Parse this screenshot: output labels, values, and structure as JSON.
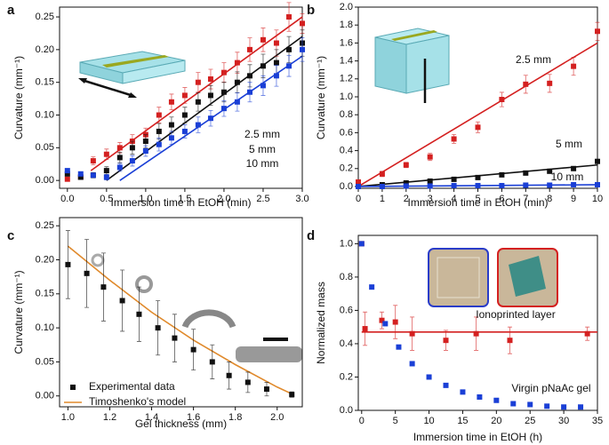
{
  "chart_data": [
    {
      "type": "scatter",
      "panel": "a",
      "xlabel": "Immersion time in EtOH (min)",
      "ylabel": "Curvature (mm⁻¹)",
      "xlim": [
        -0.1,
        3.0
      ],
      "ylim": [
        -0.012,
        0.265
      ],
      "xticks": [
        {
          "value": 0,
          "label": "0.0"
        },
        0.5,
        {
          "value": 1,
          "label": "1.0"
        },
        1.5,
        {
          "value": 2,
          "label": "2.0"
        },
        2.5,
        {
          "value": 3,
          "label": "3.0"
        }
      ],
      "yticks": [
        {
          "value": 0,
          "label": "0.00"
        },
        0.05,
        {
          "value": 0.1,
          "label": "0.10"
        },
        0.15,
        {
          "value": 0.2,
          "label": "0.20"
        },
        0.25
      ],
      "series": [
        {
          "name": "2.5 mm",
          "color": "#d42020",
          "x": [
            0,
            0.17,
            0.33,
            0.5,
            0.67,
            0.83,
            1.0,
            1.17,
            1.33,
            1.5,
            1.67,
            1.83,
            2.0,
            2.17,
            2.33,
            2.5,
            2.67,
            2.83,
            3.0
          ],
          "values": [
            0.002,
            0.005,
            0.03,
            0.04,
            0.05,
            0.06,
            0.07,
            0.1,
            0.12,
            0.13,
            0.15,
            0.155,
            0.165,
            0.18,
            0.2,
            0.215,
            0.21,
            0.25,
            0.24
          ],
          "errors": [
            0.002,
            0.003,
            0.006,
            0.008,
            0.008,
            0.01,
            0.01,
            0.012,
            0.012,
            0.012,
            0.015,
            0.015,
            0.015,
            0.016,
            0.018,
            0.018,
            0.02,
            0.022,
            0.015
          ]
        },
        {
          "name": "5 mm",
          "color": "#111111",
          "x": [
            0,
            0.17,
            0.33,
            0.5,
            0.67,
            0.83,
            1.0,
            1.17,
            1.33,
            1.5,
            1.67,
            1.83,
            2.0,
            2.17,
            2.33,
            2.5,
            2.67,
            2.83,
            3.0
          ],
          "values": [
            0.01,
            0.005,
            0.008,
            0.015,
            0.035,
            0.05,
            0.06,
            0.075,
            0.085,
            0.1,
            0.12,
            0.13,
            0.135,
            0.15,
            0.16,
            0.175,
            0.18,
            0.2,
            0.21
          ],
          "errors": [
            0.003,
            0.003,
            0.004,
            0.006,
            0.008,
            0.01,
            0.01,
            0.012,
            0.012,
            0.012,
            0.014,
            0.015,
            0.015,
            0.016,
            0.017,
            0.018,
            0.02,
            0.02,
            0.02
          ]
        },
        {
          "name": "10 mm",
          "color": "#1a3fd6",
          "x": [
            0,
            0.17,
            0.33,
            0.5,
            0.67,
            0.83,
            1.0,
            1.17,
            1.33,
            1.5,
            1.67,
            1.83,
            2.0,
            2.17,
            2.33,
            2.5,
            2.67,
            2.83,
            3.0
          ],
          "values": [
            0.015,
            0.01,
            0.008,
            0.005,
            0.02,
            0.03,
            0.045,
            0.055,
            0.065,
            0.075,
            0.085,
            0.095,
            0.11,
            0.12,
            0.135,
            0.145,
            0.16,
            0.175,
            0.2
          ],
          "errors": [
            0.003,
            0.003,
            0.003,
            0.004,
            0.006,
            0.008,
            0.008,
            0.01,
            0.01,
            0.01,
            0.012,
            0.012,
            0.012,
            0.014,
            0.015,
            0.015,
            0.016,
            0.016,
            0.018
          ]
        }
      ],
      "fits": [
        {
          "color": "#d42020",
          "x": [
            0.3,
            3.0
          ],
          "values": [
            0.015,
            0.25
          ]
        },
        {
          "color": "#111111",
          "x": [
            0.5,
            3.0
          ],
          "values": [
            0.0,
            0.22
          ]
        },
        {
          "color": "#1a3fd6",
          "x": [
            0.67,
            3.0
          ],
          "values": [
            0.0,
            0.19
          ]
        }
      ]
    },
    {
      "type": "scatter",
      "panel": "b",
      "xlabel": "Immersion time in EtOH (min)",
      "ylabel": "Curvature (mm⁻¹)",
      "xlim": [
        0,
        10
      ],
      "ylim": [
        -0.02,
        2.0
      ],
      "xticks": [
        0,
        1,
        2,
        3,
        4,
        5,
        6,
        7,
        8,
        9,
        10
      ],
      "yticks": [
        {
          "value": 0,
          "label": "0.0"
        },
        0.2,
        0.4,
        0.6,
        0.8,
        {
          "value": 1,
          "label": "1.0"
        },
        1.2,
        1.4,
        1.6,
        1.8,
        {
          "value": 2,
          "label": "2.0"
        }
      ],
      "series": [
        {
          "name": "2.5 mm",
          "color": "#d42020",
          "x": [
            0,
            1,
            2,
            3,
            4,
            5,
            6,
            7,
            8,
            9,
            10
          ],
          "values": [
            0.05,
            0.14,
            0.24,
            0.33,
            0.53,
            0.66,
            0.97,
            1.14,
            1.15,
            1.34,
            1.73
          ],
          "errors": [
            0.02,
            0.03,
            0.03,
            0.04,
            0.05,
            0.06,
            0.08,
            0.1,
            0.1,
            0.1,
            0.1
          ]
        },
        {
          "name": "5 mm",
          "color": "#111111",
          "x": [
            0,
            1,
            2,
            3,
            4,
            5,
            6,
            7,
            8,
            9,
            10
          ],
          "values": [
            0.0,
            0.02,
            0.04,
            0.06,
            0.08,
            0.1,
            0.13,
            0.15,
            0.17,
            0.2,
            0.28
          ],
          "errors": [
            0.01,
            0.01,
            0.01,
            0.01,
            0.01,
            0.01,
            0.015,
            0.015,
            0.015,
            0.02,
            0.02
          ]
        },
        {
          "name": "10 mm",
          "color": "#1a3fd6",
          "x": [
            0,
            1,
            2,
            3,
            4,
            5,
            6,
            7,
            8,
            9,
            10
          ],
          "values": [
            0.0,
            0.0,
            0.005,
            0.005,
            0.01,
            0.01,
            0.01,
            0.015,
            0.015,
            0.02,
            0.02
          ],
          "errors": [
            0.005,
            0.005,
            0.005,
            0.005,
            0.005,
            0.005,
            0.005,
            0.005,
            0.005,
            0.005,
            0.005
          ]
        }
      ],
      "fits": [
        {
          "color": "#d42020",
          "x": [
            0,
            10
          ],
          "values": [
            0.0,
            1.6
          ]
        },
        {
          "color": "#111111",
          "x": [
            0,
            10
          ],
          "values": [
            0.0,
            0.24
          ]
        },
        {
          "color": "#1a3fd6",
          "x": [
            0,
            10
          ],
          "values": [
            0.0,
            0.02
          ]
        }
      ]
    },
    {
      "type": "scatter",
      "panel": "c",
      "xlabel": "Gel thickness (mm)",
      "ylabel": "Curvature (mm⁻¹)",
      "xlim": [
        0.96,
        2.12
      ],
      "ylim": [
        -0.016,
        0.262
      ],
      "xticks": [
        {
          "value": 1,
          "label": "1.0"
        },
        1.2,
        1.4,
        1.6,
        1.8,
        {
          "value": 2,
          "label": "2.0"
        }
      ],
      "yticks": [
        {
          "value": 0,
          "label": "0.00"
        },
        0.05,
        {
          "value": 0.1,
          "label": "0.10"
        },
        0.15,
        {
          "value": 0.2,
          "label": "0.20"
        },
        0.25
      ],
      "series": [
        {
          "name": "Experimental data",
          "color": "#111111",
          "x": [
            1.0,
            1.09,
            1.17,
            1.26,
            1.34,
            1.43,
            1.51,
            1.6,
            1.69,
            1.77,
            1.86,
            1.95,
            2.07
          ],
          "values": [
            0.193,
            0.18,
            0.16,
            0.14,
            0.12,
            0.1,
            0.085,
            0.068,
            0.05,
            0.03,
            0.02,
            0.01,
            0.002
          ],
          "errors": [
            0.05,
            0.05,
            0.05,
            0.045,
            0.04,
            0.04,
            0.035,
            0.03,
            0.025,
            0.02,
            0.015,
            0.01,
            0.004
          ]
        }
      ],
      "fits": [
        {
          "name": "Timoshenko's model",
          "color": "#e08a2c",
          "x": [
            1.0,
            1.2,
            1.4,
            1.6,
            1.8,
            2.0,
            2.07
          ],
          "values": [
            0.22,
            0.17,
            0.123,
            0.082,
            0.046,
            0.013,
            0.003
          ]
        }
      ]
    },
    {
      "type": "scatter",
      "panel": "d",
      "xlabel": "Immersion time in EtOH (h)",
      "ylabel": "Normalized mass",
      "xlim": [
        -0.5,
        35
      ],
      "ylim": [
        0,
        1.05
      ],
      "xticks": [
        0,
        5,
        10,
        15,
        20,
        25,
        30,
        35
      ],
      "yticks": [
        {
          "value": 0,
          "label": "0.0"
        },
        0.2,
        0.4,
        0.6,
        0.8,
        {
          "value": 1,
          "label": "1.0"
        }
      ],
      "series": [
        {
          "name": "Ionoprinted layer",
          "color": "#d42020",
          "x": [
            0,
            0.5,
            3,
            5,
            7.5,
            12.5,
            17,
            22,
            33.5
          ],
          "values": [
            1.0,
            0.49,
            0.54,
            0.53,
            0.46,
            0.42,
            0.46,
            0.42,
            0.46
          ],
          "errors": [
            0.01,
            0.1,
            0.05,
            0.1,
            0.1,
            0.06,
            0.1,
            0.08,
            0.04
          ]
        },
        {
          "name": "Virgin pNaAc gel",
          "color": "#1a3fd6",
          "x": [
            0,
            1.5,
            3.5,
            5.5,
            7.5,
            10,
            12.5,
            15,
            17.5,
            20,
            22.5,
            25,
            27.5,
            30,
            32.5
          ],
          "values": [
            1.0,
            0.74,
            0.52,
            0.38,
            0.28,
            0.2,
            0.15,
            0.11,
            0.08,
            0.06,
            0.04,
            0.035,
            0.025,
            0.02,
            0.02
          ]
        }
      ],
      "fits": [
        {
          "color": "#d42020",
          "x": [
            0,
            35
          ],
          "values": [
            0.47,
            0.47
          ]
        }
      ]
    }
  ]
}
